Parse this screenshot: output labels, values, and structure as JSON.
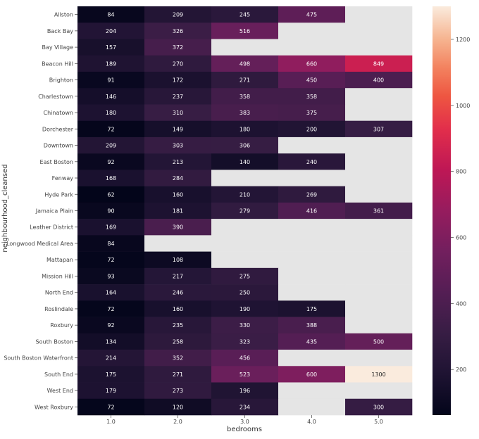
{
  "chart_data": {
    "type": "heatmap",
    "xlabel": "bedrooms",
    "ylabel": "neighbourhood_cleansed",
    "x_categories": [
      "1.0",
      "2.0",
      "3.0",
      "4.0",
      "5.0"
    ],
    "y_categories": [
      "Allston",
      "Back Bay",
      "Bay Village",
      "Beacon Hill",
      "Brighton",
      "Charlestown",
      "Chinatown",
      "Dorchester",
      "Downtown",
      "East Boston",
      "Fenway",
      "Hyde Park",
      "Jamaica Plain",
      "Leather District",
      "Longwood Medical Area",
      "Mattapan",
      "Mission Hill",
      "North End",
      "Roslindale",
      "Roxbury",
      "South Boston",
      "South Boston Waterfront",
      "South End",
      "West End",
      "West Roxbury"
    ],
    "values": [
      [
        84,
        209,
        245,
        475,
        null
      ],
      [
        204,
        326,
        516,
        null,
        null
      ],
      [
        157,
        372,
        null,
        null,
        null
      ],
      [
        189,
        270,
        498,
        660,
        849
      ],
      [
        91,
        172,
        271,
        450,
        400
      ],
      [
        146,
        237,
        358,
        358,
        null
      ],
      [
        180,
        310,
        383,
        375,
        null
      ],
      [
        72,
        149,
        180,
        200,
        307
      ],
      [
        209,
        303,
        306,
        null,
        null
      ],
      [
        92,
        213,
        140,
        240,
        null
      ],
      [
        168,
        284,
        null,
        null,
        null
      ],
      [
        62,
        160,
        210,
        269,
        null
      ],
      [
        90,
        181,
        279,
        416,
        361
      ],
      [
        169,
        390,
        null,
        null,
        null
      ],
      [
        84,
        null,
        null,
        null,
        null
      ],
      [
        72,
        108,
        null,
        null,
        null
      ],
      [
        93,
        217,
        275,
        null,
        null
      ],
      [
        164,
        246,
        250,
        null,
        null
      ],
      [
        72,
        160,
        190,
        175,
        null
      ],
      [
        92,
        235,
        330,
        388,
        null
      ],
      [
        134,
        258,
        323,
        435,
        500
      ],
      [
        214,
        352,
        456,
        null,
        null
      ],
      [
        175,
        271,
        523,
        600,
        1300
      ],
      [
        179,
        273,
        196,
        null,
        null
      ],
      [
        72,
        120,
        234,
        null,
        300
      ]
    ],
    "colorbar": {
      "min": 62,
      "max": 1300,
      "ticks": [
        "200",
        "400",
        "600",
        "800",
        "1000",
        "1200"
      ],
      "colormap": "rocket"
    },
    "missing_color": "#e5e5e5"
  }
}
